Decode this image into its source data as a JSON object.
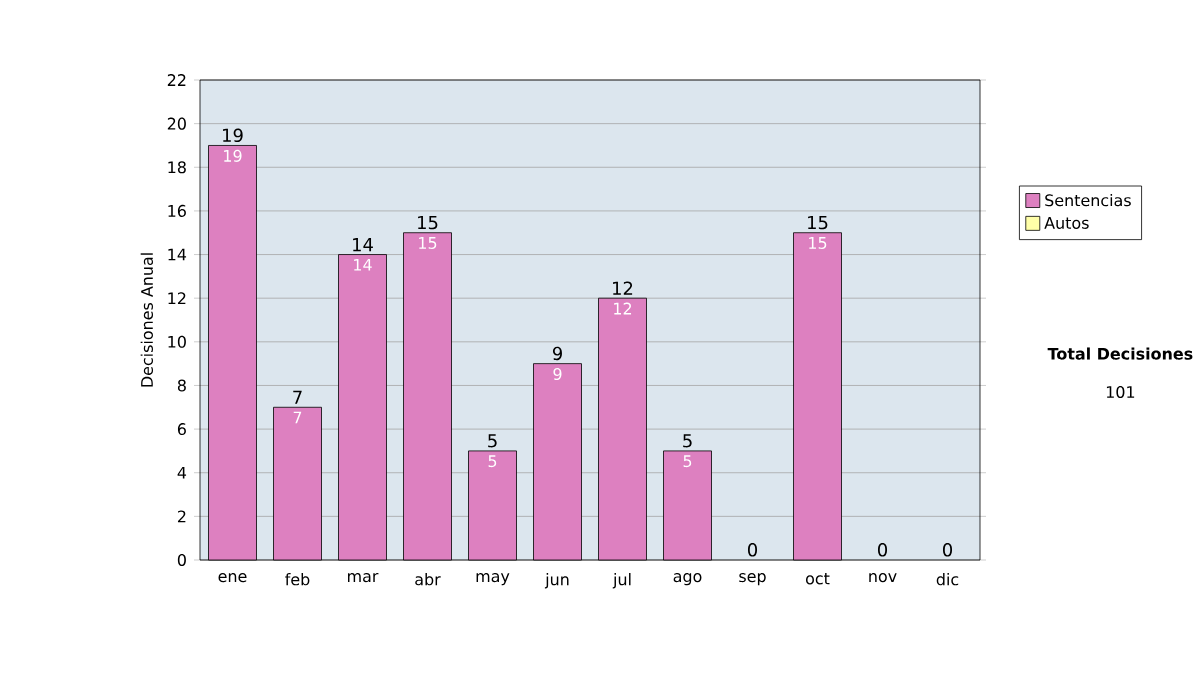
{
  "chart_data": {
    "type": "bar",
    "stacked": true,
    "ylabel": "Decisiones Anual",
    "categories": [
      "ene",
      "feb",
      "mar",
      "abr",
      "may",
      "jun",
      "jul",
      "ago",
      "sep",
      "oct",
      "nov",
      "dic"
    ],
    "series": [
      {
        "name": "Sentencias",
        "color": "#dd80c0",
        "values": [
          19,
          7,
          14,
          15,
          5,
          9,
          12,
          5,
          0,
          15,
          0,
          0
        ],
        "value_labels": [
          "19",
          "7",
          "14",
          "15",
          "5",
          "9",
          "12",
          "5",
          null,
          "15",
          null,
          null
        ]
      },
      {
        "name": "Autos",
        "color": "#ffffa8",
        "values": [
          0,
          0,
          0,
          0,
          0,
          0,
          0,
          0,
          0,
          0,
          0,
          0
        ]
      }
    ],
    "totals": [
      "19",
      "7",
      "14",
      "15",
      "5",
      "9",
      "12",
      "5",
      "0",
      "15",
      "0",
      "0"
    ],
    "ylim": [
      0,
      22
    ],
    "yticks": [
      0,
      2,
      4,
      6,
      8,
      10,
      12,
      14,
      16,
      18,
      20,
      22
    ],
    "grid": "y",
    "legend": "right",
    "annotations": [
      "Total Decisiones",
      "101"
    ]
  }
}
